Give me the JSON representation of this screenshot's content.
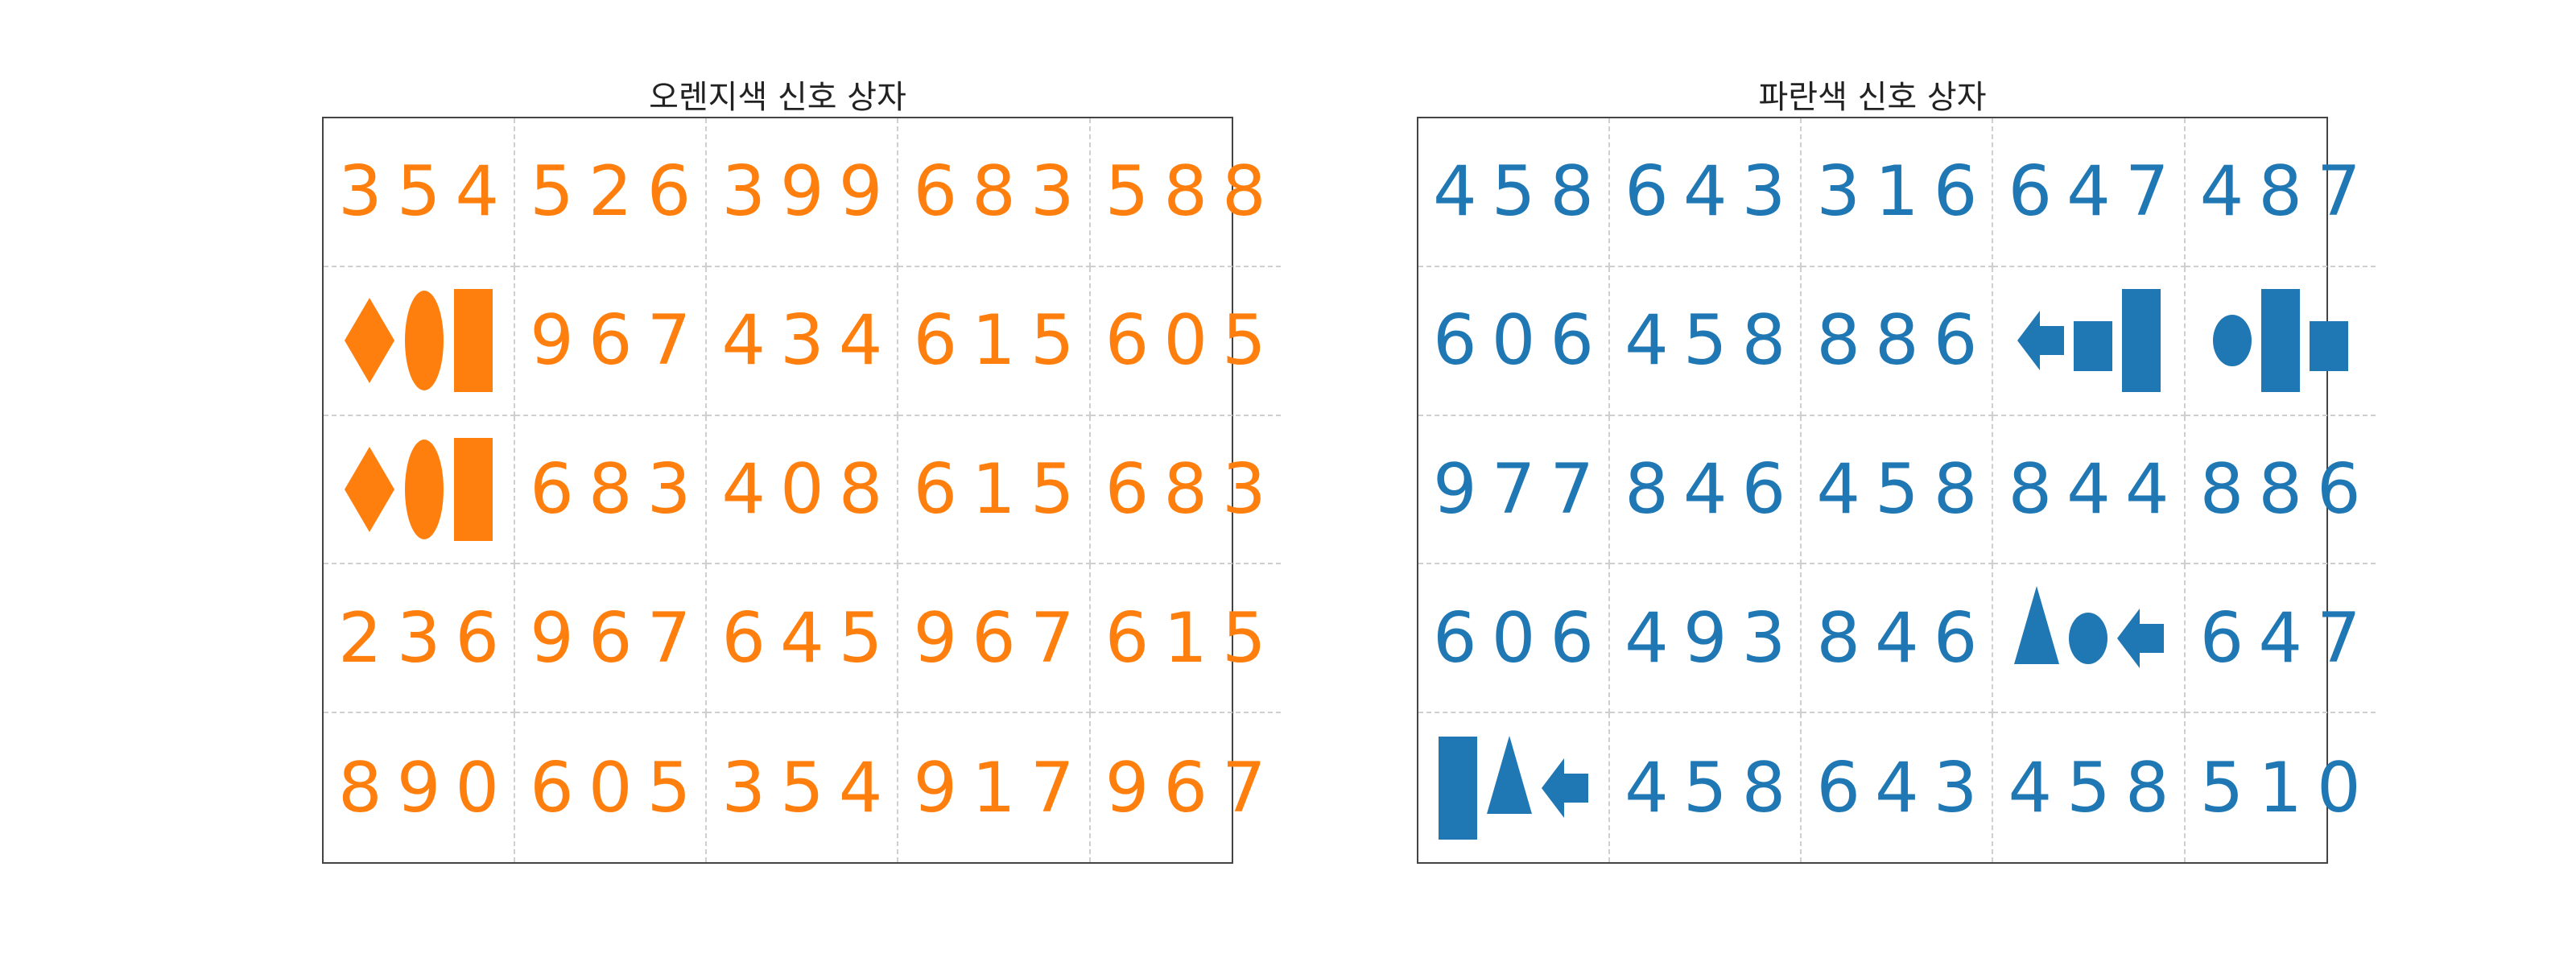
{
  "colors": {
    "orange": "#ff7f0e",
    "blue": "#1f77b4"
  },
  "panels": [
    {
      "title": "오렌지색 신호 상자",
      "color": "#ff7f0e",
      "grid": [
        [
          {
            "text": "354"
          },
          {
            "text": "526"
          },
          {
            "text": "399"
          },
          {
            "text": "683"
          },
          {
            "text": "588"
          }
        ],
        [
          {
            "shapes": [
              "diamond",
              "ellipse",
              "rect-tall"
            ]
          },
          {
            "text": "967"
          },
          {
            "text": "434"
          },
          {
            "text": "615"
          },
          {
            "text": "605"
          }
        ],
        [
          {
            "shapes": [
              "diamond",
              "ellipse",
              "rect-tall"
            ]
          },
          {
            "text": "683"
          },
          {
            "text": "408"
          },
          {
            "text": "615"
          },
          {
            "text": "683"
          }
        ],
        [
          {
            "text": "236"
          },
          {
            "text": "967"
          },
          {
            "text": "645"
          },
          {
            "text": "967"
          },
          {
            "text": "615"
          }
        ],
        [
          {
            "text": "890"
          },
          {
            "text": "605"
          },
          {
            "text": "354"
          },
          {
            "text": "917"
          },
          {
            "text": "967"
          }
        ]
      ]
    },
    {
      "title": "파란색 신호 상자",
      "color": "#1f77b4",
      "grid": [
        [
          {
            "text": "458"
          },
          {
            "text": "643"
          },
          {
            "text": "316"
          },
          {
            "text": "647"
          },
          {
            "text": "487"
          }
        ],
        [
          {
            "text": "606"
          },
          {
            "text": "458"
          },
          {
            "text": "886"
          },
          {
            "shapes": [
              "arrow-left",
              "square",
              "rect-tall"
            ]
          },
          {
            "shapes": [
              "circle",
              "rect-tall",
              "square"
            ]
          }
        ],
        [
          {
            "text": "977"
          },
          {
            "text": "846"
          },
          {
            "text": "458"
          },
          {
            "text": "844"
          },
          {
            "text": "886"
          }
        ],
        [
          {
            "text": "606"
          },
          {
            "text": "493"
          },
          {
            "text": "846"
          },
          {
            "shapes": [
              "triangle",
              "circle",
              "arrow-left"
            ]
          },
          {
            "text": "647"
          }
        ],
        [
          {
            "shapes": [
              "rect-tall",
              "triangle",
              "arrow-left"
            ]
          },
          {
            "text": "458"
          },
          {
            "text": "643"
          },
          {
            "text": "458"
          },
          {
            "text": "510"
          }
        ]
      ]
    }
  ]
}
